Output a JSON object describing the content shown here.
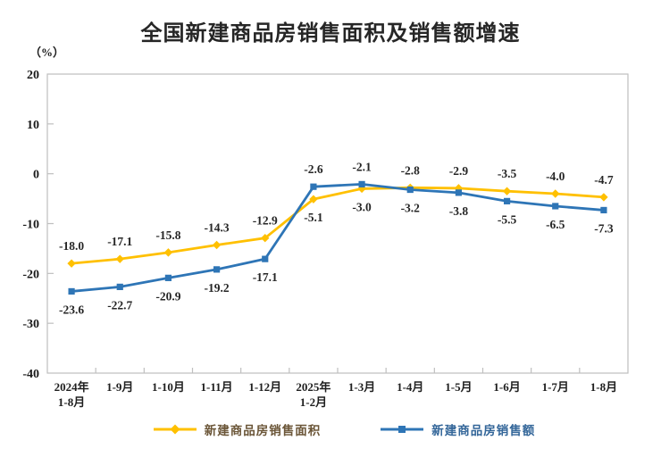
{
  "chart_data": {
    "type": "line",
    "title": "全国新建商品房销售面积及销售额增速",
    "unit_label": "（%）",
    "categories": [
      "2024年\n1-8月",
      "1-9月",
      "1-10月",
      "1-11月",
      "1-12月",
      "2025年\n1-2月",
      "1-3月",
      "1-4月",
      "1-5月",
      "1-6月",
      "1-7月",
      "1-8月"
    ],
    "series": [
      {
        "name": "新建商品房销售面积",
        "color": "#FFC000",
        "marker": "diamond",
        "label_color": "#6b5638",
        "values": [
          -18.0,
          -17.1,
          -15.8,
          -14.3,
          -12.9,
          -5.1,
          -3.0,
          -2.8,
          -2.9,
          -3.5,
          -4.0,
          -4.7
        ]
      },
      {
        "name": "新建商品房销售额",
        "color": "#2E75B6",
        "marker": "square",
        "label_color": "#336699",
        "values": [
          -23.6,
          -22.7,
          -20.9,
          -19.2,
          -17.1,
          -2.6,
          -2.1,
          -3.2,
          -3.8,
          -5.5,
          -6.5,
          -7.3
        ]
      }
    ],
    "ylim": [
      -40,
      20
    ],
    "yticks": [
      20,
      10,
      0,
      -10,
      -20,
      -30,
      -40
    ],
    "grid": false,
    "frame_color": "#BFBFBF",
    "text_color": "#1a1a1a",
    "legend_position": "bottom",
    "data_labels_decimals": 1
  }
}
